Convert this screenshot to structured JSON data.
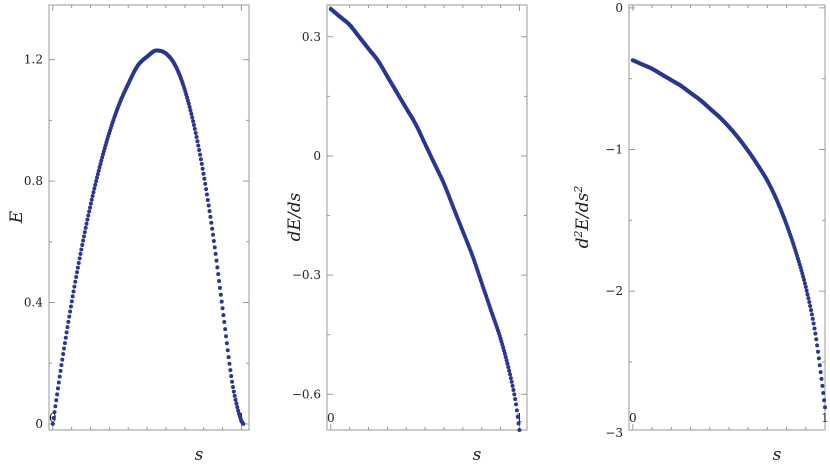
{
  "chart_data": [
    {
      "type": "scatter",
      "title": "",
      "xlabel": "s",
      "ylabel": "E",
      "xlim": [
        -0.02,
        1.04
      ],
      "ylim": [
        -0.02,
        1.38
      ],
      "xticks": [
        0,
        1
      ],
      "xtick_labels": [
        "0",
        "1"
      ],
      "yticks": [
        0,
        0.4,
        0.8,
        1.2
      ],
      "ytick_labels": [
        "0",
        "0.4",
        "0.8",
        "1.2"
      ],
      "color": "#2b3592",
      "grid": false,
      "x": [
        0.0,
        0.05,
        0.1,
        0.15,
        0.2,
        0.25,
        0.3,
        0.35,
        0.4,
        0.45,
        0.5,
        0.55,
        0.6,
        0.65,
        0.7,
        0.75,
        0.8,
        0.85,
        0.9,
        0.95,
        0.98,
        1.0,
        1.01
      ],
      "y": [
        0.0,
        0.21,
        0.4,
        0.57,
        0.72,
        0.85,
        0.96,
        1.05,
        1.12,
        1.18,
        1.21,
        1.23,
        1.22,
        1.18,
        1.1,
        0.98,
        0.82,
        0.62,
        0.38,
        0.14,
        0.05,
        0.01,
        0.0
      ]
    },
    {
      "type": "scatter",
      "title": "",
      "xlabel": "s",
      "ylabel": "dE/ds",
      "xlim": [
        -0.02,
        1.04
      ],
      "ylim": [
        -0.69,
        0.38
      ],
      "xticks": [
        0,
        1
      ],
      "xtick_labels": [
        "0",
        "1"
      ],
      "yticks": [
        0.3,
        0,
        -0.3,
        -0.6
      ],
      "ytick_labels": [
        "0.3",
        "0",
        "−0.3",
        "−0.6"
      ],
      "color": "#2b3592",
      "grid": false,
      "x": [
        0.0,
        0.05,
        0.1,
        0.15,
        0.2,
        0.25,
        0.3,
        0.35,
        0.4,
        0.45,
        0.5,
        0.55,
        0.6,
        0.65,
        0.7,
        0.75,
        0.8,
        0.85,
        0.9,
        0.95,
        0.98,
        1.0
      ],
      "y": [
        0.37,
        0.35,
        0.33,
        0.3,
        0.27,
        0.24,
        0.2,
        0.16,
        0.12,
        0.08,
        0.03,
        -0.02,
        -0.07,
        -0.13,
        -0.19,
        -0.25,
        -0.32,
        -0.39,
        -0.46,
        -0.55,
        -0.62,
        -0.69
      ]
    },
    {
      "type": "scatter",
      "title": "",
      "xlabel": "s",
      "ylabel": "d2E/ds2",
      "xlim": [
        -0.02,
        1.0
      ],
      "ylim": [
        -2.98,
        0.02
      ],
      "xticks": [
        0,
        1
      ],
      "xtick_labels": [
        "0",
        "1"
      ],
      "yticks": [
        0,
        -1,
        -2,
        -3
      ],
      "ytick_labels": [
        "0",
        "−1",
        "−2",
        "−3"
      ],
      "color": "#2b3592",
      "grid": false,
      "x": [
        0.0,
        0.05,
        0.1,
        0.15,
        0.2,
        0.25,
        0.3,
        0.35,
        0.4,
        0.45,
        0.5,
        0.55,
        0.6,
        0.65,
        0.7,
        0.75,
        0.8,
        0.85,
        0.9,
        0.95,
        0.98,
        1.0
      ],
      "y": [
        -0.37,
        -0.4,
        -0.43,
        -0.47,
        -0.51,
        -0.55,
        -0.6,
        -0.65,
        -0.71,
        -0.77,
        -0.84,
        -0.92,
        -1.01,
        -1.11,
        -1.22,
        -1.36,
        -1.53,
        -1.73,
        -1.97,
        -2.3,
        -2.6,
        -2.82
      ]
    }
  ]
}
